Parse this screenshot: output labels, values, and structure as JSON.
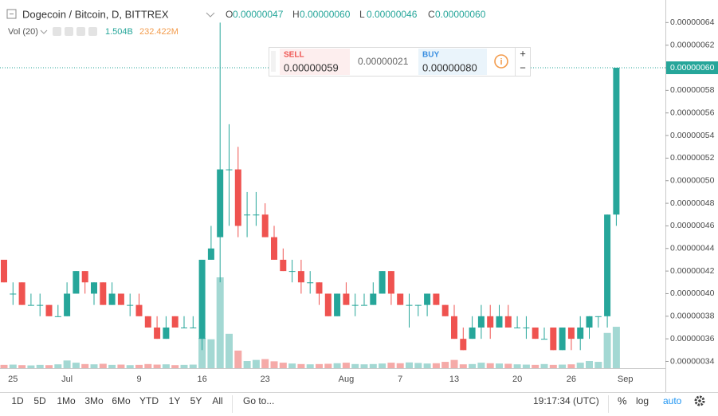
{
  "header": {
    "title": "Dogecoin / Bitcoin, D, BITTREX",
    "o_label": "O",
    "o_value": "0.00000047",
    "h_label": "H",
    "h_value": "0.00000060",
    "l_label": "L",
    "l_value": "0.00000046",
    "c_label": "C",
    "c_value": "0.00000060",
    "vol_label": "Vol (20)",
    "vol_value": "1.504B",
    "vol_ma": "232.422M"
  },
  "order_widget": {
    "sell_label": "SELL",
    "sell_price": "0.00000059",
    "spread": "0.00000021",
    "buy_label": "BUY",
    "buy_price": "0.00000080",
    "info": "i",
    "plus": "+",
    "minus": "−"
  },
  "last_price": "0.00000060",
  "toolbar": {
    "ranges": [
      "1D",
      "5D",
      "1Mo",
      "3Mo",
      "6Mo",
      "YTD",
      "1Y",
      "5Y",
      "All"
    ],
    "goto": "Go to...",
    "time": "19:17:34 (UTC)",
    "percent": "%",
    "log": "log",
    "auto": "auto"
  },
  "chart_data": {
    "type": "candlestick",
    "categories": [
      null,
      "25",
      null,
      null,
      null,
      null,
      null,
      "Jul",
      null,
      null,
      null,
      null,
      null,
      null,
      null,
      "9",
      null,
      null,
      null,
      null,
      null,
      null,
      "16",
      null,
      null,
      null,
      null,
      null,
      null,
      "23",
      null,
      null,
      null,
      null,
      null,
      null,
      null,
      null,
      "Aug",
      null,
      null,
      null,
      null,
      null,
      "7",
      null,
      null,
      null,
      null,
      null,
      "13",
      null,
      null,
      null,
      null,
      null,
      null,
      "20",
      null,
      null,
      null,
      null,
      null,
      "26",
      null,
      null,
      null,
      null,
      null
    ],
    "next_label": "Sep",
    "open": [
      4.3e-07,
      4e-07,
      4.1e-07,
      3.9e-07,
      3.9e-07,
      3.9e-07,
      3.8e-07,
      3.8e-07,
      4e-07,
      4.2e-07,
      4e-07,
      4.1e-07,
      3.9e-07,
      4e-07,
      3.9e-07,
      3.9e-07,
      3.8e-07,
      3.7e-07,
      3.6e-07,
      3.8e-07,
      3.7e-07,
      3.7e-07,
      3.6e-07,
      4.3e-07,
      4.5e-07,
      5.1e-07,
      5.1e-07,
      4.7e-07,
      4.7e-07,
      4.7e-07,
      4.5e-07,
      4.3e-07,
      4.2e-07,
      4.2e-07,
      4.1e-07,
      4.1e-07,
      4e-07,
      3.8e-07,
      4e-07,
      3.9e-07,
      3.9e-07,
      3.9e-07,
      4e-07,
      4.2e-07,
      4e-07,
      3.9e-07,
      3.9e-07,
      3.9e-07,
      4e-07,
      3.9e-07,
      3.8e-07,
      3.6e-07,
      3.6e-07,
      3.7e-07,
      3.8e-07,
      3.7e-07,
      3.8e-07,
      3.7e-07,
      3.7e-07,
      3.7e-07,
      3.6e-07,
      3.7e-07,
      3.5e-07,
      3.7e-07,
      3.6e-07,
      3.7e-07,
      3.8e-07,
      3.8e-07,
      4.7e-07
    ],
    "high": [
      4.3e-07,
      4.1e-07,
      4.1e-07,
      4e-07,
      4e-07,
      3.9e-07,
      3.9e-07,
      4.1e-07,
      4.2e-07,
      4.2e-07,
      4.1e-07,
      4.1e-07,
      4.1e-07,
      4e-07,
      4e-07,
      4e-07,
      3.8e-07,
      3.8e-07,
      3.8e-07,
      3.8e-07,
      3.8e-07,
      3.8e-07,
      4.3e-07,
      4.6e-07,
      6.4e-07,
      5.5e-07,
      5.3e-07,
      4.9e-07,
      4.9e-07,
      4.8e-07,
      4.6e-07,
      4.4e-07,
      4.3e-07,
      4.3e-07,
      4.2e-07,
      4.1e-07,
      4e-07,
      4e-07,
      4.1e-07,
      4e-07,
      4e-07,
      4.1e-07,
      4.2e-07,
      4.2e-07,
      4e-07,
      4e-07,
      3.9e-07,
      4e-07,
      4e-07,
      3.9e-07,
      3.9e-07,
      3.7e-07,
      3.8e-07,
      3.9e-07,
      3.9e-07,
      3.9e-07,
      3.9e-07,
      3.8e-07,
      3.8e-07,
      3.7e-07,
      3.7e-07,
      3.7e-07,
      3.7e-07,
      3.7e-07,
      3.8e-07,
      3.8e-07,
      3.8e-07,
      4.7e-07,
      6e-07
    ],
    "low": [
      4.1e-07,
      3.9e-07,
      3.9e-07,
      3.9e-07,
      3.8e-07,
      3.8e-07,
      3.8e-07,
      3.8e-07,
      4e-07,
      4e-07,
      3.9e-07,
      3.9e-07,
      3.9e-07,
      3.9e-07,
      3.8e-07,
      3.8e-07,
      3.7e-07,
      3.6e-07,
      3.6e-07,
      3.7e-07,
      3.7e-07,
      3.7e-07,
      3.5e-07,
      4.3e-07,
      4.1e-07,
      4.6e-07,
      4.5e-07,
      4.5e-07,
      4.6e-07,
      4.5e-07,
      4.3e-07,
      4.2e-07,
      4.1e-07,
      4e-07,
      4e-07,
      3.9e-07,
      3.8e-07,
      3.8e-07,
      3.9e-07,
      3.8e-07,
      3.9e-07,
      3.9e-07,
      4e-07,
      3.9e-07,
      3.9e-07,
      3.7e-07,
      3.8e-07,
      3.8e-07,
      3.9e-07,
      3.8e-07,
      3.6e-07,
      3.5e-07,
      3.6e-07,
      3.6e-07,
      3.6e-07,
      3.7e-07,
      3.7e-07,
      3.7e-07,
      3.6e-07,
      3.6e-07,
      3.6e-07,
      3.5e-07,
      3.5e-07,
      3.5e-07,
      3.5e-07,
      3.6e-07,
      3.7e-07,
      3.7e-07,
      4.6e-07
    ],
    "close": [
      4.1e-07,
      4e-07,
      3.9e-07,
      3.9e-07,
      3.9e-07,
      3.8e-07,
      3.8e-07,
      4e-07,
      4.2e-07,
      4.1e-07,
      4.1e-07,
      3.9e-07,
      4e-07,
      3.9e-07,
      3.9e-07,
      3.8e-07,
      3.7e-07,
      3.6e-07,
      3.7e-07,
      3.7e-07,
      3.7e-07,
      3.7e-07,
      4.3e-07,
      4.4e-07,
      5.1e-07,
      5.1e-07,
      4.6e-07,
      4.7e-07,
      4.7e-07,
      4.5e-07,
      4.3e-07,
      4.2e-07,
      4.2e-07,
      4.1e-07,
      4.1e-07,
      4e-07,
      3.8e-07,
      4e-07,
      3.9e-07,
      3.9e-07,
      3.9e-07,
      4e-07,
      4.2e-07,
      4e-07,
      3.9e-07,
      3.9e-07,
      3.9e-07,
      4e-07,
      3.9e-07,
      3.8e-07,
      3.6e-07,
      3.5e-07,
      3.7e-07,
      3.8e-07,
      3.7e-07,
      3.8e-07,
      3.7e-07,
      3.7e-07,
      3.7e-07,
      3.6e-07,
      3.6e-07,
      3.5e-07,
      3.7e-07,
      3.6e-07,
      3.7e-07,
      3.8e-07,
      3.8e-07,
      4.7e-07,
      6e-07
    ],
    "volume": [
      120000000,
      130000000,
      110000000,
      100000000,
      120000000,
      110000000,
      140000000,
      280000000,
      200000000,
      150000000,
      140000000,
      160000000,
      120000000,
      130000000,
      110000000,
      120000000,
      150000000,
      130000000,
      140000000,
      110000000,
      120000000,
      130000000,
      1100000000,
      1050000000,
      3300000000,
      1250000000,
      640000000,
      260000000,
      300000000,
      330000000,
      250000000,
      200000000,
      170000000,
      150000000,
      140000000,
      150000000,
      160000000,
      180000000,
      200000000,
      150000000,
      140000000,
      150000000,
      170000000,
      200000000,
      180000000,
      210000000,
      190000000,
      170000000,
      180000000,
      230000000,
      300000000,
      140000000,
      150000000,
      200000000,
      180000000,
      170000000,
      160000000,
      140000000,
      130000000,
      120000000,
      150000000,
      120000000,
      130000000,
      140000000,
      200000000,
      260000000,
      230000000,
      1280000000,
      1504000000
    ],
    "up_color": "#26a69a",
    "down_color": "#ef5350",
    "up_volume_color": "#a3d8d3",
    "down_volume_color": "#f5aaa8",
    "ylim": [
      3.34e-07,
      6.6e-07
    ],
    "yticks": [
      {
        "value": 3.4e-07,
        "label": "0.00000034"
      },
      {
        "value": 3.6e-07,
        "label": "0.00000036"
      },
      {
        "value": 3.8e-07,
        "label": "0.00000038"
      },
      {
        "value": 4e-07,
        "label": "0.00000040"
      },
      {
        "value": 4.2e-07,
        "label": "0.00000042"
      },
      {
        "value": 4.4e-07,
        "label": "0.00000044"
      },
      {
        "value": 4.6e-07,
        "label": "0.00000046"
      },
      {
        "value": 4.8e-07,
        "label": "0.00000048"
      },
      {
        "value": 5e-07,
        "label": "0.00000050"
      },
      {
        "value": 5.2e-07,
        "label": "0.00000052"
      },
      {
        "value": 5.4e-07,
        "label": "0.00000054"
      },
      {
        "value": 5.6e-07,
        "label": "0.00000056"
      },
      {
        "value": 5.8e-07,
        "label": "0.00000058"
      },
      {
        "value": 6e-07,
        "label": "0.00000060"
      },
      {
        "value": 6.2e-07,
        "label": "0.00000062"
      },
      {
        "value": 6.4e-07,
        "label": "0.00000064"
      }
    ]
  }
}
